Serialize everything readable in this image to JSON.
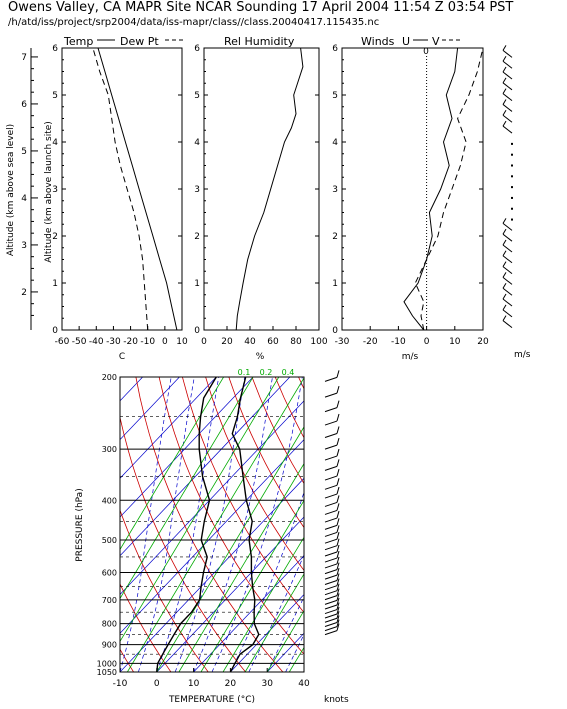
{
  "header": {
    "title": "Owens Valley, CA MAPR Site NCAR Sounding 17 April 2004 11:54 Z 03:54 PST",
    "subtitle": "/h/atd/iss/project/srp2004/data/iss-mapr/class//class.20040417.115435.nc"
  },
  "colors": {
    "axis": "#000000",
    "dry_adiabat": "#cc0000",
    "moist_adiabat": "#0000cc",
    "isotherm": "#0000cc",
    "mixing_ratio": "#00aa00",
    "isobar": "#000000"
  },
  "chart_data": [
    {
      "type": "line",
      "panel": "temperature",
      "title": "Temp",
      "legend": [
        "Temp",
        "Dew Pt"
      ],
      "xlabel": "C",
      "ylabel_left": "Altitude (km above sea level)",
      "ylabel_inner": "Altitude (km above launch site)",
      "xlim": [
        -60,
        10
      ],
      "ylim": [
        0,
        6
      ],
      "xticks": [
        "-60",
        "-50",
        "-40",
        "-30",
        "-20",
        "-10",
        "0",
        "10"
      ],
      "yticks": [
        "0",
        "1",
        "2",
        "3",
        "4",
        "5",
        "6"
      ],
      "y_msl_ticks": [
        "2",
        "3",
        "4",
        "5",
        "6",
        "7"
      ],
      "series": [
        {
          "name": "Temp",
          "style": "solid",
          "points": [
            [
              7,
              0
            ],
            [
              4,
              0.5
            ],
            [
              1,
              1
            ],
            [
              -3,
              1.5
            ],
            [
              -7,
              2
            ],
            [
              -11,
              2.5
            ],
            [
              -15,
              3
            ],
            [
              -19,
              3.5
            ],
            [
              -23,
              4
            ],
            [
              -27,
              4.5
            ],
            [
              -31,
              5
            ],
            [
              -35,
              5.5
            ],
            [
              -39,
              6
            ]
          ]
        },
        {
          "name": "Dew Pt",
          "style": "dashed",
          "points": [
            [
              -10,
              0
            ],
            [
              -11,
              0.5
            ],
            [
              -12,
              1
            ],
            [
              -13,
              1.5
            ],
            [
              -15,
              2
            ],
            [
              -18,
              2.5
            ],
            [
              -22,
              3
            ],
            [
              -26,
              3.5
            ],
            [
              -29,
              4
            ],
            [
              -31,
              4.5
            ],
            [
              -33,
              5
            ],
            [
              -38,
              5.5
            ],
            [
              -42,
              6
            ]
          ]
        }
      ]
    },
    {
      "type": "line",
      "panel": "humidity",
      "title": "Rel Humidity",
      "xlabel": "%",
      "xlim": [
        0,
        100
      ],
      "ylim": [
        0,
        6
      ],
      "xticks": [
        "0",
        "20",
        "40",
        "60",
        "80",
        "100"
      ],
      "yticks": [
        "0",
        "1",
        "2",
        "3",
        "4",
        "5",
        "6"
      ],
      "series": [
        {
          "name": "Rel Humidity",
          "style": "solid",
          "points": [
            [
              28,
              0
            ],
            [
              29,
              0.3
            ],
            [
              31,
              0.6
            ],
            [
              34,
              1
            ],
            [
              38,
              1.5
            ],
            [
              44,
              2
            ],
            [
              52,
              2.5
            ],
            [
              58,
              3
            ],
            [
              64,
              3.5
            ],
            [
              70,
              4
            ],
            [
              76,
              4.3
            ],
            [
              80,
              4.6
            ],
            [
              78,
              5
            ],
            [
              82,
              5.3
            ],
            [
              86,
              5.6
            ],
            [
              84,
              6
            ]
          ]
        }
      ]
    },
    {
      "type": "line",
      "panel": "winds",
      "title": "Winds",
      "legend": [
        "U",
        "V"
      ],
      "xlabel": "m/s",
      "xlim": [
        -30,
        20
      ],
      "ylim": [
        0,
        6
      ],
      "xticks": [
        "-30",
        "-20",
        "-10",
        "0",
        "10",
        "20"
      ],
      "yticks": [
        "0",
        "1",
        "2",
        "3",
        "4",
        "5",
        "6"
      ],
      "zero_label": "0",
      "barb_label": "m/s",
      "series": [
        {
          "name": "U",
          "style": "solid",
          "points": [
            [
              -1,
              0
            ],
            [
              -5,
              0.3
            ],
            [
              -8,
              0.6
            ],
            [
              -3,
              1
            ],
            [
              0,
              1.5
            ],
            [
              2,
              2
            ],
            [
              1,
              2.5
            ],
            [
              5,
              3
            ],
            [
              8,
              3.5
            ],
            [
              6,
              4
            ],
            [
              9,
              4.5
            ],
            [
              7,
              5
            ],
            [
              10,
              5.5
            ],
            [
              11,
              6
            ]
          ]
        },
        {
          "name": "V",
          "style": "dashed",
          "points": [
            [
              -1,
              0
            ],
            [
              -2,
              0.3
            ],
            [
              -1,
              0.6
            ],
            [
              -4,
              1
            ],
            [
              0,
              1.5
            ],
            [
              4,
              2
            ],
            [
              6,
              2.5
            ],
            [
              9,
              3
            ],
            [
              12,
              3.5
            ],
            [
              14,
              4
            ],
            [
              11,
              4.5
            ],
            [
              15,
              5
            ],
            [
              18,
              5.5
            ],
            [
              20,
              6
            ]
          ]
        }
      ]
    },
    {
      "type": "line",
      "panel": "skewt",
      "xlabel": "TEMPERATURE (°C)",
      "ylabel": "PRESSURE (hPa)",
      "xlim": [
        -10,
        40
      ],
      "plim": [
        1050,
        200
      ],
      "xticks": [
        "-10",
        "0",
        "10",
        "20",
        "30",
        "40"
      ],
      "pticks": [
        "200",
        "300",
        "400",
        "500",
        "600",
        "700",
        "800",
        "900",
        "1000",
        "1050"
      ],
      "mixing_ratio_labels_top": [
        "0.1",
        "0.2",
        "0.4"
      ],
      "barb_label": "knots",
      "series": [
        {
          "name": "Temperature",
          "style": "solid",
          "points": [
            [
              1050,
              20
            ],
            [
              1000,
              19
            ],
            [
              950,
              18
            ],
            [
              900,
              19
            ],
            [
              850,
              18
            ],
            [
              800,
              14
            ],
            [
              750,
              11
            ],
            [
              700,
              8
            ],
            [
              650,
              4
            ],
            [
              600,
              0
            ],
            [
              550,
              -4
            ],
            [
              500,
              -9
            ],
            [
              450,
              -13
            ],
            [
              400,
              -20
            ],
            [
              350,
              -27
            ],
            [
              300,
              -35
            ],
            [
              275,
              -41
            ],
            [
              250,
              -44
            ],
            [
              225,
              -48
            ],
            [
              200,
              -52
            ]
          ]
        },
        {
          "name": "Dew Point",
          "style": "solid",
          "points": [
            [
              1050,
              0
            ],
            [
              1000,
              -2
            ],
            [
              950,
              -3
            ],
            [
              900,
              -4
            ],
            [
              850,
              -5
            ],
            [
              800,
              -6
            ],
            [
              750,
              -6
            ],
            [
              700,
              -7
            ],
            [
              650,
              -10
            ],
            [
              600,
              -13
            ],
            [
              550,
              -16
            ],
            [
              500,
              -22
            ],
            [
              450,
              -26
            ],
            [
              400,
              -30
            ],
            [
              350,
              -38
            ],
            [
              300,
              -46
            ],
            [
              275,
              -50
            ],
            [
              250,
              -54
            ],
            [
              225,
              -58
            ],
            [
              200,
              -60
            ]
          ]
        }
      ]
    }
  ]
}
